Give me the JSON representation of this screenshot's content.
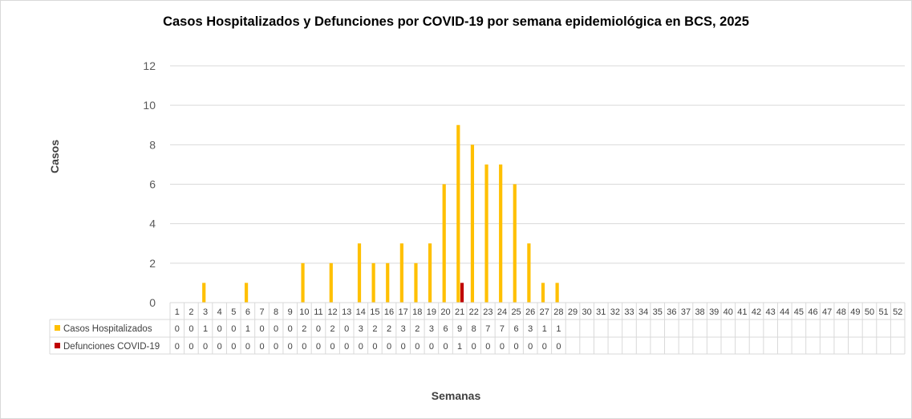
{
  "chart_data": {
    "type": "bar",
    "title": "Casos Hospitalizados  y Defunciones  por COVID-19 por semana epidemiológica  en BCS, 2025",
    "xlabel": "Semanas",
    "ylabel": "Casos",
    "ylim": [
      0,
      12
    ],
    "yticks": [
      "0",
      "2",
      "4",
      "6",
      "8",
      "10",
      "12"
    ],
    "grid": true,
    "legend_placement": "data-table-left",
    "categories": [
      "1",
      "2",
      "3",
      "4",
      "5",
      "6",
      "7",
      "8",
      "9",
      "10",
      "11",
      "12",
      "13",
      "14",
      "15",
      "16",
      "17",
      "18",
      "19",
      "20",
      "21",
      "22",
      "23",
      "24",
      "25",
      "26",
      "27",
      "28",
      "29",
      "30",
      "31",
      "32",
      "33",
      "34",
      "35",
      "36",
      "37",
      "38",
      "39",
      "40",
      "41",
      "42",
      "43",
      "44",
      "45",
      "46",
      "47",
      "48",
      "49",
      "50",
      "51",
      "52"
    ],
    "series": [
      {
        "name": "Casos Hospitalizados",
        "color": "#FFC000",
        "values": [
          0,
          0,
          1,
          0,
          0,
          1,
          0,
          0,
          0,
          2,
          0,
          2,
          0,
          3,
          2,
          2,
          3,
          2,
          3,
          6,
          9,
          8,
          7,
          7,
          6,
          3,
          1,
          1,
          null,
          null,
          null,
          null,
          null,
          null,
          null,
          null,
          null,
          null,
          null,
          null,
          null,
          null,
          null,
          null,
          null,
          null,
          null,
          null,
          null,
          null,
          null,
          null
        ]
      },
      {
        "name": "Defunciones COVID-19",
        "color": "#C00000",
        "values": [
          0,
          0,
          0,
          0,
          0,
          0,
          0,
          0,
          0,
          0,
          0,
          0,
          0,
          0,
          0,
          0,
          0,
          0,
          0,
          0,
          1,
          0,
          0,
          0,
          0,
          0,
          0,
          0,
          null,
          null,
          null,
          null,
          null,
          null,
          null,
          null,
          null,
          null,
          null,
          null,
          null,
          null,
          null,
          null,
          null,
          null,
          null,
          null,
          null,
          null,
          null,
          null
        ]
      }
    ]
  }
}
